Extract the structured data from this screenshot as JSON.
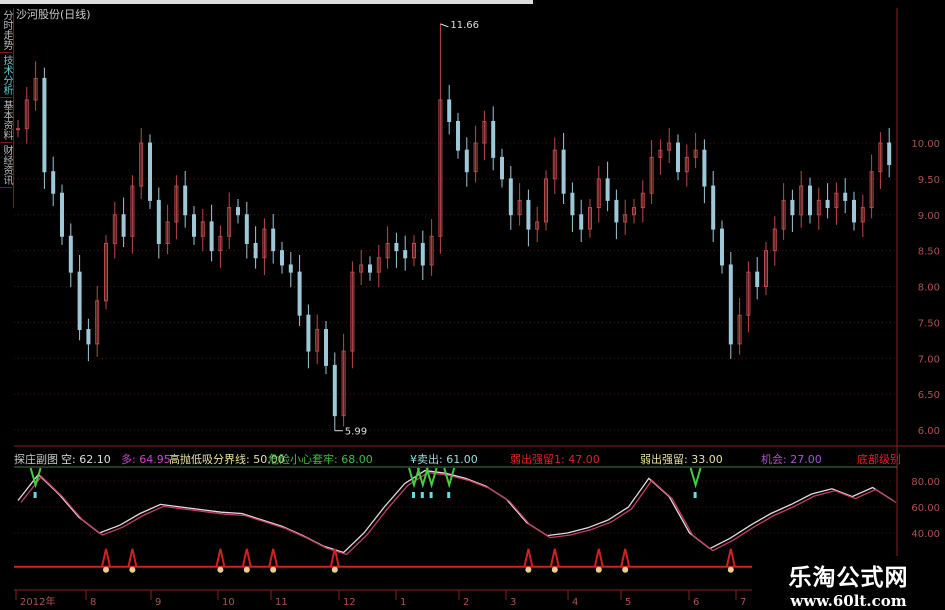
{
  "window": {
    "title": "沙河股份(日线)"
  },
  "sidebar": {
    "tabs": [
      {
        "label": "分时走势",
        "active": false
      },
      {
        "label": "技术分析",
        "active": true
      },
      {
        "label": "基本资料",
        "active": false
      },
      {
        "label": "财经资讯",
        "active": false
      }
    ]
  },
  "colors": {
    "up": "#b84a4a",
    "down": "#9cc8d8",
    "grid": "#5a1010",
    "axis": "#8a2020",
    "line1": "#e8d8e8",
    "line2": "#c04060",
    "base": "#d02020"
  },
  "indicator_legend": [
    {
      "text": "探庄副图",
      "color": "#cccccc"
    },
    {
      "text": "空: 62.10",
      "color": "#dddddd"
    },
    {
      "text": "多: 64.95",
      "color": "#cc44cc"
    },
    {
      "text": "高抛低吸分界线: 50.00",
      "color": "#e8e0a0"
    },
    {
      "text": "危险小心套牢: 68.00",
      "color": "#44bb44"
    },
    {
      "text": "¥卖出: 61.00",
      "color": "#99dddd"
    },
    {
      "text": "弱出强留1: 47.00",
      "color": "#dd2222"
    },
    {
      "text": "弱出强留: 33.00",
      "color": "#e8e0a0"
    },
    {
      "text": "机会: 27.00",
      "color": "#aa55cc"
    },
    {
      "text": "底部级别",
      "color": "#dd2222"
    }
  ],
  "chart_data": [
    {
      "type": "candlestick",
      "title": "沙河股份(日线)",
      "ylim": [
        5.8,
        11.8
      ],
      "yticks": [
        "10.00",
        "9.50",
        "9.00",
        "8.50",
        "8.00",
        "7.50",
        "7.00",
        "6.50",
        "6.00"
      ],
      "annotations": [
        {
          "text": "11.66",
          "type": "high"
        },
        {
          "text": "5.99",
          "type": "low"
        }
      ],
      "closes": [
        10.2,
        10.6,
        10.9,
        9.6,
        9.3,
        8.7,
        8.2,
        7.4,
        7.2,
        7.8,
        8.6,
        9.0,
        8.7,
        9.4,
        10.0,
        9.2,
        8.6,
        8.9,
        9.4,
        9.0,
        8.7,
        8.9,
        8.5,
        8.7,
        9.1,
        9.0,
        8.6,
        8.4,
        8.8,
        8.5,
        8.3,
        8.2,
        7.6,
        7.1,
        7.4,
        6.9,
        6.2,
        7.1,
        8.2,
        8.3,
        8.2,
        8.4,
        8.6,
        8.5,
        8.4,
        8.6,
        8.3,
        8.7,
        10.6,
        10.3,
        9.9,
        9.6,
        10.0,
        10.3,
        9.8,
        9.5,
        9.0,
        9.2,
        8.8,
        8.9,
        9.5,
        9.9,
        9.3,
        9.0,
        8.8,
        9.1,
        9.5,
        9.2,
        8.9,
        9.0,
        9.1,
        9.3,
        9.8,
        9.9,
        10.0,
        9.6,
        9.8,
        9.9,
        9.4,
        8.8,
        8.3,
        7.2,
        7.6,
        8.2,
        8.0,
        8.5,
        8.8,
        9.2,
        9.0,
        9.4,
        9.0,
        9.2,
        9.1,
        9.3,
        9.2,
        8.9,
        9.1,
        9.6,
        10.0,
        9.7
      ],
      "high_index": 48,
      "high_value": 11.66,
      "low_index": 36,
      "low_value": 5.99
    },
    {
      "type": "line",
      "title": "探庄副图",
      "ylim": [
        10,
        95
      ],
      "yticks": [
        "80.00",
        "60.00",
        "40.00"
      ],
      "series": [
        {
          "values": [
            65,
            85,
            70,
            52,
            40,
            46,
            55,
            62,
            60,
            58,
            56,
            55,
            50,
            45,
            38,
            30,
            25,
            40,
            60,
            78,
            88,
            86,
            82,
            76,
            66,
            48,
            38,
            40,
            44,
            50,
            60,
            82,
            68,
            40,
            28,
            36,
            46,
            55,
            62,
            70,
            74,
            68,
            75,
            65
          ]
        }
      ],
      "base_value": 14,
      "sell_signals": [
        2,
        45,
        46,
        47,
        49,
        77
      ],
      "peak_signals": [
        10,
        13,
        23,
        26,
        29,
        36,
        58,
        61,
        66,
        69,
        81
      ],
      "xticks": [
        "2012年",
        "8",
        "9",
        "10",
        "11",
        "12",
        "1",
        "2",
        "3",
        "4",
        "5",
        "6",
        "7"
      ]
    }
  ],
  "watermark": {
    "line1": "乐淘公式网",
    "line2": "www.60lt.com"
  }
}
